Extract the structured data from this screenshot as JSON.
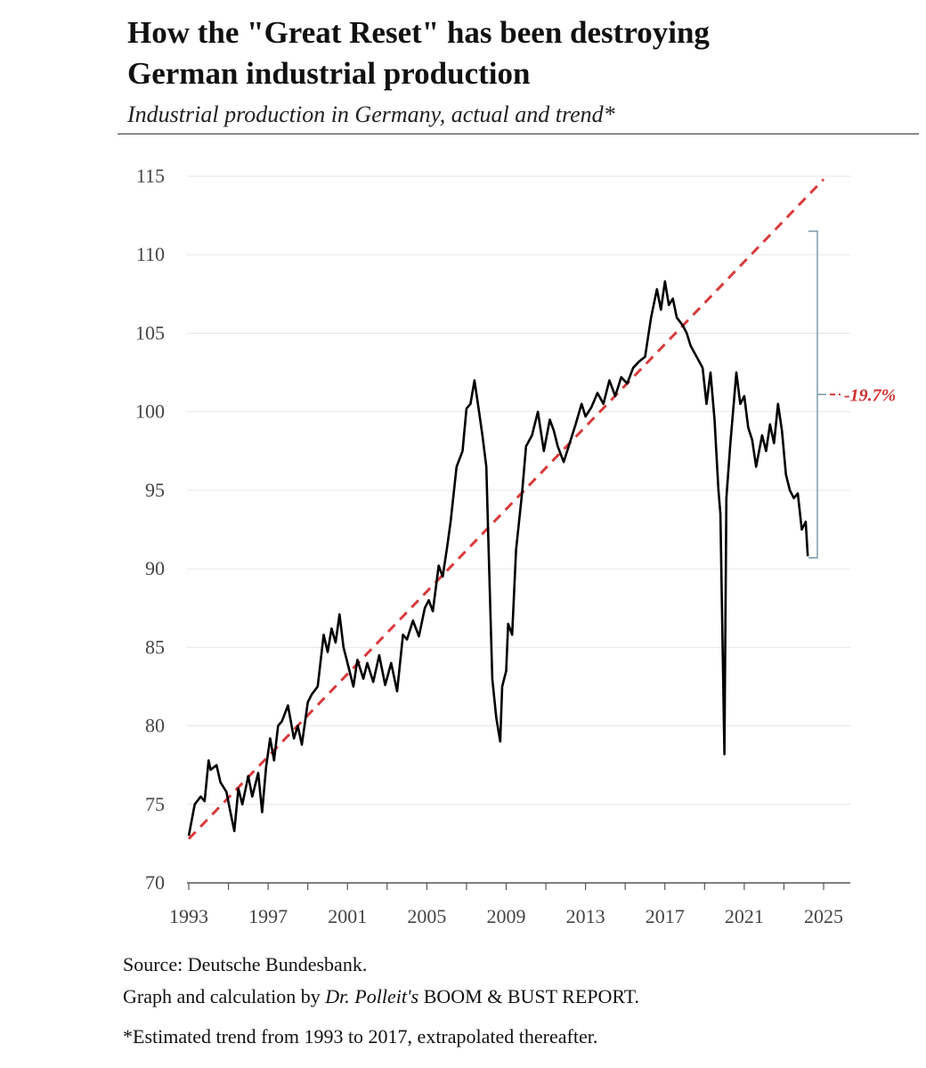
{
  "title_line1": "How the \"Great Reset\" has been destroying",
  "title_line2": "German industrial production",
  "subtitle": "Industrial production in Germany, actual and trend*",
  "footer": {
    "source": "Source: Deutsche Bundesbank.",
    "graph_prefix": "Graph and calculation by ",
    "graph_author": "Dr. Polleit's",
    "graph_suffix": " BOOM & BUST REPORT.",
    "note": "*Estimated trend from 1993 to 2017, extrapolated thereafter."
  },
  "chart_data": {
    "type": "line",
    "title": "How the \"Great Reset\" has been destroying German industrial production",
    "subtitle": "Industrial production in Germany, actual and trend*",
    "xlim": [
      1993,
      2025.2
    ],
    "ylim": [
      70,
      115
    ],
    "x_ticks": [
      1993,
      1997,
      2001,
      2005,
      2009,
      2013,
      2017,
      2021,
      2025
    ],
    "y_ticks": [
      70,
      75,
      80,
      85,
      90,
      95,
      100,
      105,
      110,
      115
    ],
    "grid": "horizontal",
    "colors": {
      "actual": "#000000",
      "trend": "#d93a3a",
      "bracket": "#7a9aaa",
      "annotation": "#d03030"
    },
    "annotation": {
      "text": "-19.7%",
      "y_top": 111.5,
      "y_bottom": 90.7
    },
    "series": [
      {
        "style": "solid",
        "x": [
          1993.0,
          1993.3,
          1993.6,
          1993.8,
          1994.0,
          1994.1,
          1994.4,
          1994.6,
          1994.9,
          1995.1,
          1995.3,
          1995.5,
          1995.7,
          1996.0,
          1996.2,
          1996.5,
          1996.7,
          1996.9,
          1997.1,
          1997.3,
          1997.5,
          1997.7,
          1998.0,
          1998.3,
          1998.5,
          1998.7,
          1999.0,
          1999.2,
          1999.5,
          1999.8,
          2000.0,
          2000.2,
          2000.4,
          2000.6,
          2000.8,
          2001.0,
          2001.3,
          2001.5,
          2001.8,
          2002.0,
          2002.3,
          2002.6,
          2002.9,
          2003.2,
          2003.5,
          2003.8,
          2004.0,
          2004.3,
          2004.6,
          2004.9,
          2005.1,
          2005.3,
          2005.6,
          2005.8,
          2006.0,
          2006.2,
          2006.5,
          2006.8,
          2007.0,
          2007.2,
          2007.4,
          2007.6,
          2007.8,
          2008.0,
          2008.1,
          2008.3,
          2008.5,
          2008.7,
          2008.8,
          2009.0,
          2009.1,
          2009.3,
          2009.5,
          2009.8,
          2010.0,
          2010.3,
          2010.6,
          2010.9,
          2011.2,
          2011.4,
          2011.6,
          2011.9,
          2012.2,
          2012.5,
          2012.8,
          2013.0,
          2013.3,
          2013.6,
          2013.9,
          2014.2,
          2014.5,
          2014.8,
          2015.1,
          2015.4,
          2015.7,
          2016.0,
          2016.3,
          2016.6,
          2016.8,
          2017.0,
          2017.2,
          2017.4,
          2017.6,
          2017.9,
          2018.1,
          2018.3,
          2018.6,
          2018.9,
          2019.1,
          2019.3,
          2019.5,
          2019.7,
          2019.8,
          2020.0,
          2020.1,
          2020.3,
          2020.6,
          2020.8,
          2021.0,
          2021.2,
          2021.4,
          2021.6,
          2021.9,
          2022.1,
          2022.3,
          2022.5,
          2022.7,
          2022.9,
          2023.1,
          2023.3,
          2023.5,
          2023.7,
          2023.9,
          2024.1,
          2024.2
        ],
        "values": [
          73.0,
          75.0,
          75.5,
          75.2,
          77.8,
          77.2,
          77.5,
          76.4,
          75.8,
          74.5,
          73.3,
          76.0,
          75.0,
          76.8,
          75.5,
          77.0,
          74.5,
          77.4,
          79.2,
          77.8,
          80.0,
          80.3,
          81.3,
          79.2,
          80.0,
          78.8,
          81.5,
          82.0,
          82.5,
          85.8,
          84.7,
          86.2,
          85.3,
          87.1,
          85.0,
          84.0,
          82.5,
          84.2,
          83.0,
          84.0,
          82.8,
          84.5,
          82.6,
          84.0,
          82.2,
          85.8,
          85.5,
          86.7,
          85.7,
          87.5,
          88.0,
          87.3,
          90.2,
          89.5,
          91.2,
          93.0,
          96.5,
          97.5,
          100.2,
          100.5,
          102.0,
          100.3,
          98.5,
          96.5,
          92.0,
          83.0,
          80.5,
          79.0,
          82.5,
          83.5,
          86.5,
          85.8,
          91.2,
          94.8,
          97.8,
          98.5,
          100.0,
          97.5,
          99.5,
          98.8,
          97.8,
          96.8,
          98.0,
          99.2,
          100.5,
          99.7,
          100.3,
          101.2,
          100.5,
          102.0,
          101.0,
          102.2,
          101.8,
          102.8,
          103.2,
          103.5,
          106.0,
          107.8,
          106.5,
          108.3,
          106.8,
          107.2,
          106.0,
          105.5,
          105.0,
          104.2,
          103.5,
          102.8,
          100.5,
          102.5,
          99.5,
          95.0,
          93.5,
          78.2,
          94.5,
          98.0,
          102.5,
          100.5,
          101.0,
          99.0,
          98.2,
          96.5,
          98.5,
          97.5,
          99.2,
          98.0,
          100.5,
          98.8,
          96.0,
          95.0,
          94.5,
          94.8,
          92.5,
          93.0,
          90.8
        ]
      },
      {
        "style": "dashed",
        "x": [
          1993,
          2025
        ],
        "values": [
          72.8,
          114.8
        ]
      }
    ]
  }
}
